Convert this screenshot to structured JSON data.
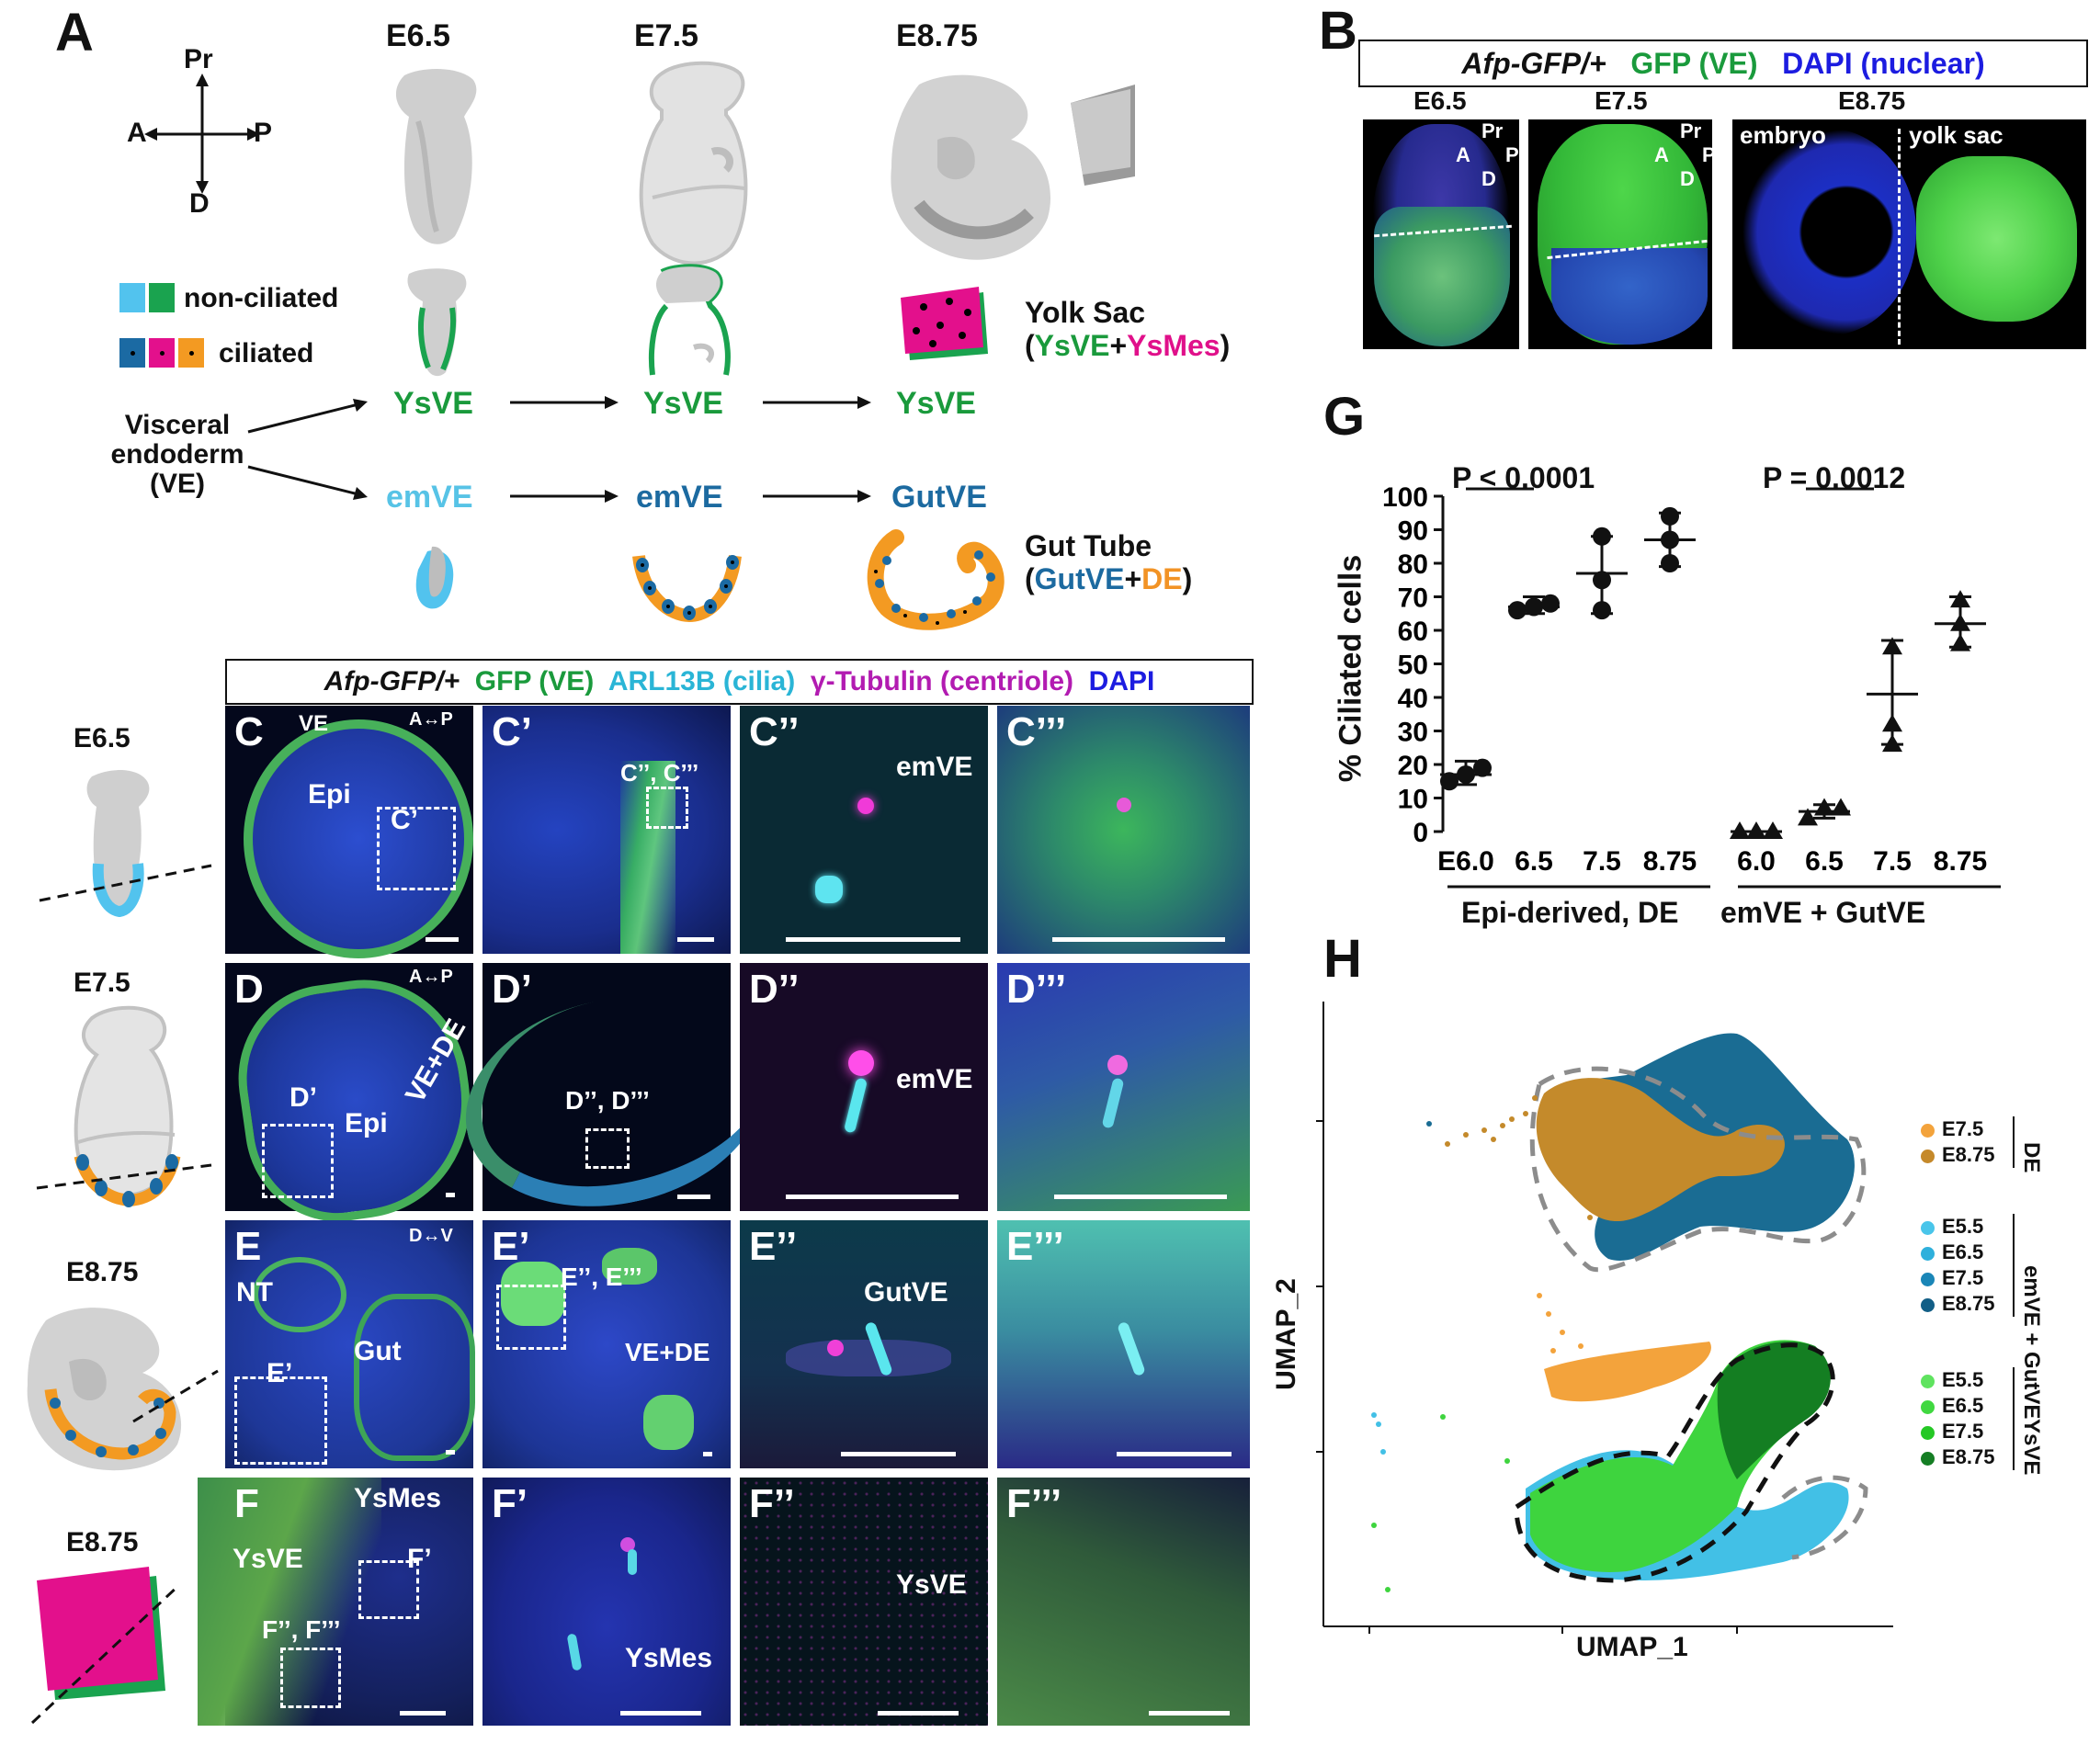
{
  "panelA": {
    "label": "A",
    "axes": {
      "pr": "Pr",
      "a": "A",
      "p": "P",
      "d": "D"
    },
    "stages": [
      "E6.5",
      "E7.5",
      "E8.75"
    ],
    "legend": {
      "nonciliated": "non-ciliated",
      "ciliated": "ciliated"
    },
    "ve_label": [
      "Visceral",
      "endoderm",
      "(VE)"
    ],
    "row_ysve": [
      "YsVE",
      "YsVE",
      "YsVE"
    ],
    "row_em": [
      "emVE",
      "emVE",
      "GutVE"
    ],
    "yolk_sac": {
      "title": "Yolk Sac",
      "open": "(",
      "ysve": "YsVE",
      "plus": "+",
      "ysmes": "YsMes",
      "close": ")"
    },
    "gut_tube": {
      "title": "Gut Tube",
      "open": "(",
      "gutve": "GutVE",
      "plus": "+",
      "de": "DE",
      "close": ")"
    }
  },
  "panelB": {
    "label": "B",
    "header": {
      "afp": "Afp-GFP/+",
      "gfp": "GFP (VE)",
      "dapi": "DAPI (nuclear)"
    },
    "stages": [
      "E6.5",
      "E7.5",
      "E8.75"
    ],
    "axes": {
      "pr": "Pr",
      "a": "A",
      "p": "P",
      "d": "D"
    },
    "e875_labels": {
      "embryo": "embryo",
      "yolk": "yolk sac"
    }
  },
  "panelCF": {
    "header": {
      "afp": "Afp-GFP/+",
      "gfp": "GFP (VE)",
      "arl": "ARL13B (cilia)",
      "tub": "γ-Tubulin (centriole)",
      "dapi": "DAPI"
    },
    "side_stages": [
      "E6.5",
      "E7.5",
      "E8.75",
      "E8.75"
    ],
    "rows": [
      {
        "tags": [
          "C",
          "C’",
          "C’’",
          "C’’’"
        ],
        "labels": {
          "ve": "VE",
          "epi": "Epi",
          "cprime": "C’",
          "cdd": "C’’, C’’’",
          "ap": "A↔P",
          "emve": "emVE"
        }
      },
      {
        "tags": [
          "D",
          "D’",
          "D’’",
          "D’’’"
        ],
        "labels": {
          "epi": "Epi",
          "dprime": "D’",
          "vede": "VE+DE",
          "ap": "A↔P",
          "ddd": "D’’, D’’’",
          "emve": "emVE"
        }
      },
      {
        "tags": [
          "E",
          "E’",
          "E’’",
          "E’’’"
        ],
        "labels": {
          "nt": "NT",
          "gut": "Gut",
          "eprime": "E’",
          "dv": "D↔V",
          "eee": "E’’, E’’’",
          "vede": "VE+DE",
          "gutve": "GutVE"
        }
      },
      {
        "tags": [
          "F",
          "F’",
          "F’’",
          "F’’’"
        ],
        "labels": {
          "ysmes": "YsMes",
          "ysve": "YsVE",
          "fprime": "F’",
          "fff": "F’’, F’’’",
          "ysmes2": "YsMes",
          "ysve2": "YsVE"
        }
      }
    ]
  },
  "panelG": {
    "label": "G",
    "ylabel": "% Ciliated cells",
    "p1": "P < 0.0001",
    "p2": "P = 0.0012",
    "group1": "Epi-derived, DE",
    "group2": "emVE + GutVE",
    "ticks": [
      "0",
      "10",
      "20",
      "30",
      "40",
      "50",
      "60",
      "70",
      "80",
      "90",
      "100"
    ]
  },
  "chart_data": {
    "type": "scatter",
    "ylabel": "% Ciliated cells",
    "ylim": [
      0,
      100
    ],
    "categories": [
      "E6.0",
      "6.5",
      "7.5",
      "8.75",
      "6.0",
      "6.5",
      "7.5",
      "8.75"
    ],
    "series": [
      {
        "name": "Epi-derived, DE",
        "marker": "circle",
        "points": [
          [
            15,
            17,
            19
          ],
          [
            66,
            67,
            68
          ],
          [
            66,
            75,
            88
          ],
          [
            80,
            87,
            94
          ]
        ],
        "mean": [
          17,
          67,
          77,
          87
        ],
        "err": [
          [
            14,
            21
          ],
          [
            65,
            70
          ],
          [
            65,
            88
          ],
          [
            79,
            95
          ]
        ]
      },
      {
        "name": "emVE + GutVE",
        "marker": "triangle",
        "points": [
          [
            0,
            0,
            0
          ],
          [
            4,
            7,
            7
          ],
          [
            26,
            32,
            55
          ],
          [
            56,
            62,
            69
          ]
        ],
        "mean": [
          0,
          6,
          41,
          62
        ],
        "err": [
          [
            0,
            0
          ],
          [
            4,
            8
          ],
          [
            26,
            57
          ],
          [
            55,
            70
          ]
        ]
      }
    ]
  },
  "panelH": {
    "label": "H",
    "xlabel": "UMAP_1",
    "ylabel": "UMAP_2",
    "legend_groups": [
      {
        "bracket": "DE",
        "items": [
          {
            "label": "E7.5",
            "color": "#f3a33c"
          },
          {
            "label": "E8.75",
            "color": "#c5892a"
          }
        ]
      },
      {
        "bracket": "emVE + GutVE",
        "items": [
          {
            "label": "E5.5",
            "color": "#49c5ea"
          },
          {
            "label": "E6.5",
            "color": "#2fb0dc"
          },
          {
            "label": "E7.5",
            "color": "#1a86b7"
          },
          {
            "label": "E8.75",
            "color": "#125e86"
          }
        ]
      },
      {
        "bracket": "YsVE",
        "items": [
          {
            "label": "E5.5",
            "color": "#5fe35f"
          },
          {
            "label": "E6.5",
            "color": "#40d840"
          },
          {
            "label": "E7.5",
            "color": "#25c825"
          },
          {
            "label": "E8.75",
            "color": "#157e24"
          }
        ]
      }
    ]
  }
}
